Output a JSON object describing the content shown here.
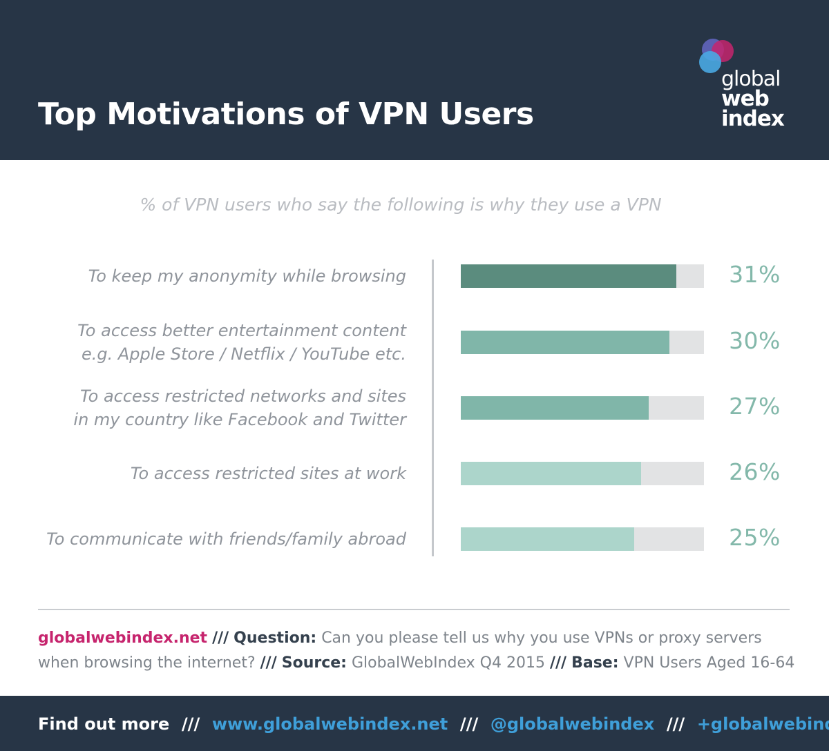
{
  "header": {
    "title": "Top Motivations of VPN Users",
    "logo": {
      "line1": "global",
      "line2": "web",
      "line3": "index"
    }
  },
  "colors": {
    "header_bg": "#273546",
    "bar_dark": "#5b8c7e",
    "bar_mid": "#80b6a9",
    "bar_light": "#acd5cb",
    "bar_track": "#e2e3e4",
    "brand_pink": "#c6246d",
    "link_blue": "#3f9fd9"
  },
  "chart_data": {
    "type": "bar",
    "orientation": "horizontal",
    "title": "% of VPN users who say the following is why they use a VPN",
    "categories": [
      "To keep my anonymity while browsing",
      "To access better entertainment content\ne.g. Apple Store / Netflix / YouTube etc.",
      "To access restricted networks and sites\nin my country like Facebook and Twitter",
      "To access restricted sites at work",
      "To communicate with friends/family abroad"
    ],
    "values": [
      31,
      30,
      27,
      26,
      25
    ],
    "value_labels": [
      "31%",
      "30%",
      "27%",
      "26%",
      "25%"
    ],
    "bar_colors": [
      "#5b8c7e",
      "#80b6a9",
      "#80b6a9",
      "#acd5cb",
      "#acd5cb"
    ],
    "xlim": [
      0,
      35
    ],
    "unit": "%"
  },
  "note": {
    "site": "globalwebindex.net",
    "sep": "///",
    "question_key": "Question:",
    "question_text": "Can you please tell us why you use VPNs or proxy servers when browsing the internet?",
    "source_key": "Source:",
    "source_text": "GlobalWebIndex Q4 2015",
    "base_key": "Base:",
    "base_text": "VPN Users Aged 16-64"
  },
  "footer": {
    "find_out_more": "Find out more",
    "sep": "///",
    "website": "www.globalwebindex.net",
    "twitter": "@globalwebindex",
    "gplus": "+globalwebindex"
  }
}
